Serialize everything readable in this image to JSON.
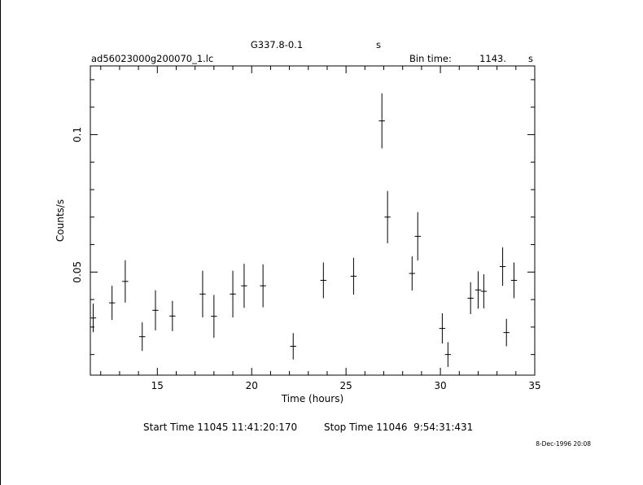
{
  "header": {
    "object": "G337.8-0.1",
    "object_suffix": "s",
    "filename": "ad56023000g200070_1.lc",
    "bin_label": "Bin time:",
    "bin_value": "1143.",
    "bin_unit": "s"
  },
  "footer": {
    "start_time": "Start Time 11045 11:41:20:170",
    "stop_time": "Stop Time 11046  9:54:31:431",
    "timestamp": "8-Dec-1996 20:08"
  },
  "chart_data": {
    "type": "scatter",
    "title": "G337.8-0.1",
    "xlabel": "Time (hours)",
    "ylabel": "Counts/s",
    "xlim": [
      11.45,
      35
    ],
    "ylim": [
      0.0125,
      0.125
    ],
    "x_ticks": [
      15,
      20,
      25,
      30,
      35
    ],
    "x_tick_labels": [
      "15",
      "20",
      "25",
      "30",
      "35"
    ],
    "y_ticks": [
      0.05,
      0.1
    ],
    "y_tick_labels": [
      "0.05",
      "0.1"
    ],
    "grid": false,
    "legend": "none",
    "series": [
      {
        "x_err": 0.16,
        "points": [
          {
            "x": 11.6,
            "y": 0.0333,
            "err": 0.0052
          },
          {
            "x": 12.6,
            "y": 0.0388,
            "err": 0.0062
          },
          {
            "x": 13.3,
            "y": 0.0466,
            "err": 0.0077
          },
          {
            "x": 14.2,
            "y": 0.0265,
            "err": 0.0052
          },
          {
            "x": 14.9,
            "y": 0.0361,
            "err": 0.0073
          },
          {
            "x": 15.8,
            "y": 0.034,
            "err": 0.0055
          },
          {
            "x": 17.4,
            "y": 0.042,
            "err": 0.0085
          },
          {
            "x": 18.0,
            "y": 0.0339,
            "err": 0.0078
          },
          {
            "x": 19.0,
            "y": 0.042,
            "err": 0.0085
          },
          {
            "x": 19.6,
            "y": 0.045,
            "err": 0.008
          },
          {
            "x": 20.6,
            "y": 0.045,
            "err": 0.0078
          },
          {
            "x": 22.2,
            "y": 0.023,
            "err": 0.0048
          },
          {
            "x": 23.8,
            "y": 0.047,
            "err": 0.0065
          },
          {
            "x": 25.4,
            "y": 0.0485,
            "err": 0.0067
          },
          {
            "x": 26.9,
            "y": 0.105,
            "err": 0.01
          },
          {
            "x": 27.2,
            "y": 0.07,
            "err": 0.0095
          },
          {
            "x": 28.5,
            "y": 0.0495,
            "err": 0.0062
          },
          {
            "x": 28.8,
            "y": 0.063,
            "err": 0.0088
          },
          {
            "x": 30.1,
            "y": 0.0295,
            "err": 0.0055
          },
          {
            "x": 30.4,
            "y": 0.02,
            "err": 0.0045
          },
          {
            "x": 31.6,
            "y": 0.0405,
            "err": 0.0058
          },
          {
            "x": 32.0,
            "y": 0.0435,
            "err": 0.0068
          },
          {
            "x": 32.3,
            "y": 0.043,
            "err": 0.0062
          },
          {
            "x": 33.3,
            "y": 0.052,
            "err": 0.007
          },
          {
            "x": 33.5,
            "y": 0.028,
            "err": 0.005
          },
          {
            "x": 33.9,
            "y": 0.047,
            "err": 0.0065
          }
        ]
      }
    ]
  }
}
